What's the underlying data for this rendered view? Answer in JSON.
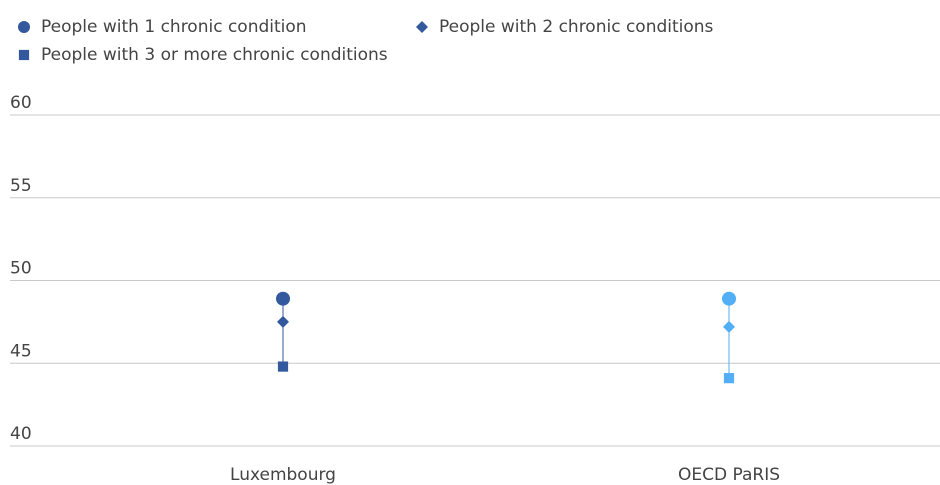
{
  "chart_data": {
    "type": "dot",
    "categories": [
      "Luxembourg",
      "OECD PaRIS"
    ],
    "category_colors": [
      "#34589e",
      "#52aef5"
    ],
    "series": [
      {
        "name": "People with 1 chronic condition",
        "marker": "circle",
        "color": "#34589e",
        "values": [
          48.9,
          48.9
        ]
      },
      {
        "name": "People with 2 chronic conditions",
        "marker": "diamond",
        "color": "#34589e",
        "values": [
          47.5,
          47.2
        ]
      },
      {
        "name": "People with 3 or more chronic conditions",
        "marker": "square",
        "color": "#34589e",
        "values": [
          44.8,
          44.1
        ]
      }
    ],
    "ylim": [
      40,
      60
    ],
    "yticks": [
      40,
      45,
      50,
      55,
      60
    ],
    "grid": true
  }
}
